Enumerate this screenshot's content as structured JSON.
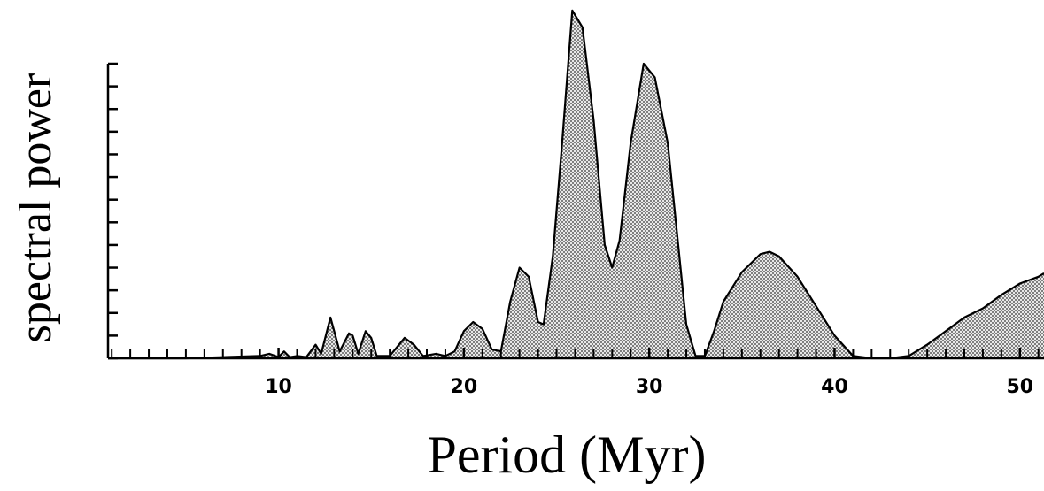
{
  "chart_data": {
    "type": "area",
    "x_label": "Period (Myr)",
    "y_label": "spectral power",
    "color": "#000000",
    "x": [
      0.8,
      5,
      7,
      9,
      9.5,
      10,
      10.3,
      10.6,
      11,
      11.5,
      12,
      12.3,
      12.8,
      13,
      13.3,
      13.8,
      14,
      14.3,
      14.7,
      15,
      15.3,
      16,
      16.8,
      17.3,
      17.8,
      18.5,
      19,
      19.5,
      20,
      20.5,
      21,
      21.5,
      22,
      22.5,
      23,
      23.5,
      24,
      24.3,
      24.8,
      25.3,
      25.85,
      26.4,
      27,
      27.6,
      28,
      28.4,
      29,
      29.7,
      30.3,
      31,
      31.5,
      32,
      32.5,
      33,
      33.5,
      34,
      35,
      36,
      36.5,
      37,
      38,
      39,
      40,
      41,
      42,
      43,
      44,
      45,
      46,
      47,
      48,
      49,
      50,
      51,
      51.3
    ],
    "values": [
      0,
      0,
      0.05,
      0.1,
      0.2,
      0.05,
      0.3,
      0.05,
      0.1,
      0.05,
      0.6,
      0.2,
      1.8,
      1.2,
      0.3,
      1.1,
      1.0,
      0.2,
      1.2,
      0.9,
      0.1,
      0.1,
      0.9,
      0.6,
      0.1,
      0.2,
      0.1,
      0.3,
      1.2,
      1.6,
      1.3,
      0.4,
      0.3,
      2.5,
      4.0,
      3.6,
      1.6,
      1.5,
      4.5,
      9.5,
      15.35,
      14.6,
      10.5,
      5.0,
      4.0,
      5.2,
      9.5,
      13.0,
      12.4,
      9.5,
      5.5,
      1.5,
      0.1,
      0.1,
      1.2,
      2.5,
      3.8,
      4.6,
      4.7,
      4.5,
      3.6,
      2.3,
      1.0,
      0.1,
      0,
      0,
      0.1,
      0.6,
      1.2,
      1.8,
      2.2,
      2.8,
      3.3,
      3.6,
      3.75
    ],
    "xlim": [
      0.8,
      51.3
    ],
    "ylim": [
      0,
      13
    ],
    "xticks": [
      10,
      20,
      30,
      40,
      50
    ],
    "xminorticks": [
      1,
      2,
      3,
      4,
      5,
      6,
      7,
      8,
      9,
      10,
      11,
      12,
      13,
      14,
      15,
      16,
      17,
      18,
      19,
      20,
      21,
      22,
      23,
      24,
      25,
      26,
      27,
      28,
      29,
      30,
      31,
      32,
      33,
      34,
      35,
      36,
      37,
      38,
      39,
      40,
      41,
      42,
      43,
      44,
      45,
      46,
      47,
      48,
      49,
      50,
      51
    ],
    "yticks": [
      0,
      1,
      2,
      3,
      4,
      5,
      6,
      7,
      8,
      9,
      10,
      11,
      12,
      13
    ]
  }
}
